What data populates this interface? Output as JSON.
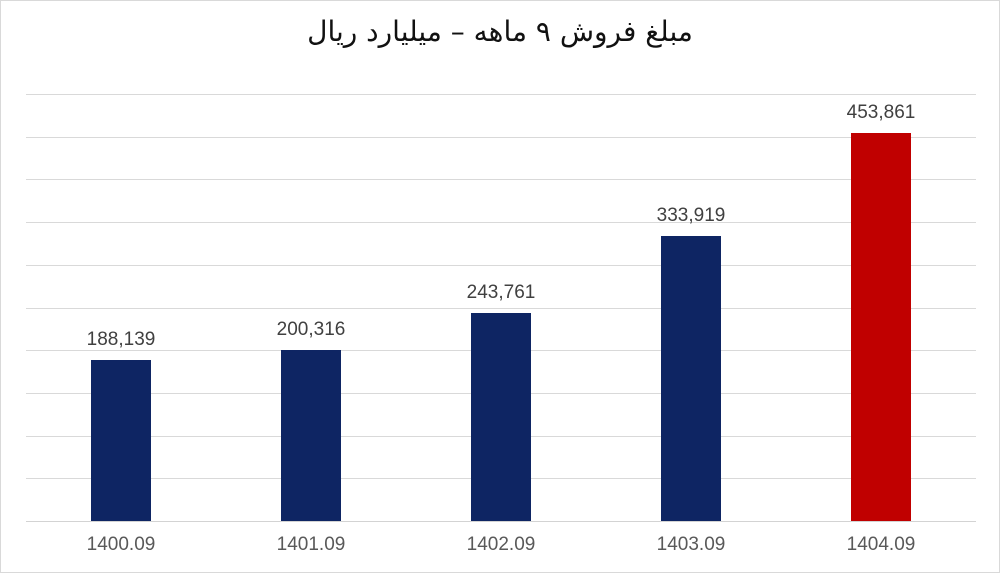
{
  "chart_data": {
    "type": "bar",
    "title": "مبلغ فروش ۹ ماهه – میلیارد ریال",
    "categories": [
      "1400.09",
      "1401.09",
      "1402.09",
      "1403.09",
      "1404.09"
    ],
    "values": [
      188139,
      200316,
      243761,
      333919,
      453861
    ],
    "value_labels": [
      "188,139",
      "200,316",
      "243,761",
      "333,919",
      "453,861"
    ],
    "bar_colors": [
      "#0e2563",
      "#0e2563",
      "#0e2563",
      "#0e2563",
      "#c00000"
    ],
    "xlabel": "",
    "ylabel": "",
    "ylim": [
      0,
      500000
    ],
    "gridline_interval": 50000,
    "grid": true,
    "legend_position": "none",
    "y_axis_labels_visible": false
  },
  "colors": {
    "bar_default": "#0e2563",
    "bar_highlight": "#c00000",
    "gridline": "#d9d9d9",
    "value_label_text": "#404040",
    "category_label_text": "#595959",
    "title_text": "#111111",
    "background": "#ffffff",
    "frame_border": "#d9d9d9"
  }
}
